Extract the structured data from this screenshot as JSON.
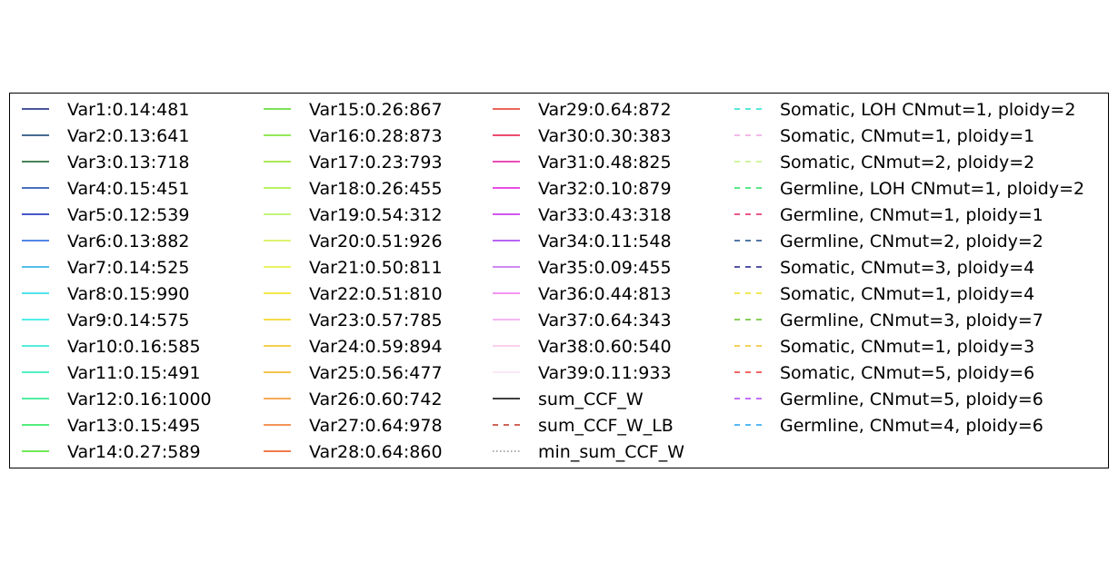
{
  "chart_data": {
    "type": "legend",
    "legend": {
      "columns": [
        [
          {
            "label": "Var1:0.14:481",
            "color": "#0a1f7a",
            "style": "solid"
          },
          {
            "label": "Var2:0.13:641",
            "color": "#0a3a6e",
            "style": "solid"
          },
          {
            "label": "Var3:0.13:718",
            "color": "#0a5a1e",
            "style": "solid"
          },
          {
            "label": "Var4:0.15:451",
            "color": "#0a3fa8",
            "style": "solid"
          },
          {
            "label": "Var5:0.12:539",
            "color": "#0a1fb8",
            "style": "solid"
          },
          {
            "label": "Var6:0.13:882",
            "color": "#1a5fdf",
            "style": "solid"
          },
          {
            "label": "Var7:0.14:525",
            "color": "#1aa8e8",
            "style": "solid"
          },
          {
            "label": "Var8:0.15:990",
            "color": "#1ad8e8",
            "style": "solid"
          },
          {
            "label": "Var9:0.14:575",
            "color": "#1ae8e0",
            "style": "solid"
          },
          {
            "label": "Var10:0.16:585",
            "color": "#1ae8d0",
            "style": "solid"
          },
          {
            "label": "Var11:0.15:491",
            "color": "#1ae8b0",
            "style": "solid"
          },
          {
            "label": "Var12:0.16:1000",
            "color": "#1ae880",
            "style": "solid"
          },
          {
            "label": "Var13:0.15:495",
            "color": "#1ae850",
            "style": "solid"
          },
          {
            "label": "Var14:0.27:589",
            "color": "#40e020",
            "style": "solid"
          }
        ],
        [
          {
            "label": "Var15:0.26:867",
            "color": "#50d820",
            "style": "solid"
          },
          {
            "label": "Var16:0.28:873",
            "color": "#70e020",
            "style": "solid"
          },
          {
            "label": "Var17:0.23:793",
            "color": "#90e020",
            "style": "solid"
          },
          {
            "label": "Var18:0.26:455",
            "color": "#a0f030",
            "style": "solid"
          },
          {
            "label": "Var19:0.54:312",
            "color": "#b0f050",
            "style": "solid"
          },
          {
            "label": "Var20:0.51:926",
            "color": "#d0f040",
            "style": "solid"
          },
          {
            "label": "Var21:0.50:811",
            "color": "#e0f030",
            "style": "solid"
          },
          {
            "label": "Var22:0.51:810",
            "color": "#f0e010",
            "style": "solid"
          },
          {
            "label": "Var23:0.57:785",
            "color": "#f0d010",
            "style": "solid"
          },
          {
            "label": "Var24:0.59:894",
            "color": "#f0c010",
            "style": "solid"
          },
          {
            "label": "Var25:0.56:477",
            "color": "#f0b010",
            "style": "solid"
          },
          {
            "label": "Var26:0.60:742",
            "color": "#f09020",
            "style": "solid"
          },
          {
            "label": "Var27:0.64:978",
            "color": "#f07020",
            "style": "solid"
          },
          {
            "label": "Var28:0.64:860",
            "color": "#e85010",
            "style": "solid"
          }
        ],
        [
          {
            "label": "Var29:0.64:872",
            "color": "#e83020",
            "style": "solid"
          },
          {
            "label": "Var30:0.30:383",
            "color": "#e81040",
            "style": "solid"
          },
          {
            "label": "Var31:0.48:825",
            "color": "#e010a0",
            "style": "solid"
          },
          {
            "label": "Var32:0.10:879",
            "color": "#e010e0",
            "style": "solid"
          },
          {
            "label": "Var33:0.43:318",
            "color": "#c020e8",
            "style": "solid"
          },
          {
            "label": "Var34:0.11:548",
            "color": "#a030f0",
            "style": "solid"
          },
          {
            "label": "Var35:0.09:455",
            "color": "#c060f0",
            "style": "solid"
          },
          {
            "label": "Var36:0.44:813",
            "color": "#f070f0",
            "style": "solid"
          },
          {
            "label": "Var37:0.64:343",
            "color": "#f0a0f0",
            "style": "solid"
          },
          {
            "label": "Var38:0.60:540",
            "color": "#f8c0e8",
            "style": "solid"
          },
          {
            "label": "Var39:0.11:933",
            "color": "#fae0f0",
            "style": "solid"
          },
          {
            "label": "sum_CCF_W",
            "color": "#000000",
            "style": "solid"
          },
          {
            "label": "sum_CCF_W_LB",
            "color": "#c03020",
            "style": "dashed"
          },
          {
            "label": "min_sum_CCF_W",
            "color": "#909090",
            "style": "dotted"
          }
        ],
        [
          {
            "label": "Somatic, LOH CNmut=1, ploidy=2",
            "color": "#20e0d0",
            "style": "dashed"
          },
          {
            "label": "Somatic, CNmut=1, ploidy=1",
            "color": "#f0a0e0",
            "style": "dashed"
          },
          {
            "label": "Somatic, CNmut=2, ploidy=2",
            "color": "#c0f080",
            "style": "dashed"
          },
          {
            "label": "Germline, LOH CNmut=1, ploidy=2",
            "color": "#20e060",
            "style": "dashed"
          },
          {
            "label": "Germline, CNmut=1, ploidy=1",
            "color": "#e02060",
            "style": "dashed"
          },
          {
            "label": "Germline, CNmut=2, ploidy=2",
            "color": "#1a4a8a",
            "style": "dashed"
          },
          {
            "label": "Somatic, CNmut=3, ploidy=4",
            "color": "#1a1a8a",
            "style": "dashed"
          },
          {
            "label": "Somatic, CNmut=1, ploidy=4",
            "color": "#f0e020",
            "style": "dashed"
          },
          {
            "label": "Germline, CNmut=3, ploidy=7",
            "color": "#60c020",
            "style": "dashed"
          },
          {
            "label": "Somatic, CNmut=1, ploidy=3",
            "color": "#f0c020",
            "style": "dashed"
          },
          {
            "label": "Somatic, CNmut=5, ploidy=6",
            "color": "#f03030",
            "style": "dashed"
          },
          {
            "label": "Germline, CNmut=5, ploidy=6",
            "color": "#b040f0",
            "style": "dashed"
          },
          {
            "label": "Germline, CNmut=4, ploidy=6",
            "color": "#20a0f0",
            "style": "dashed"
          }
        ]
      ]
    }
  }
}
